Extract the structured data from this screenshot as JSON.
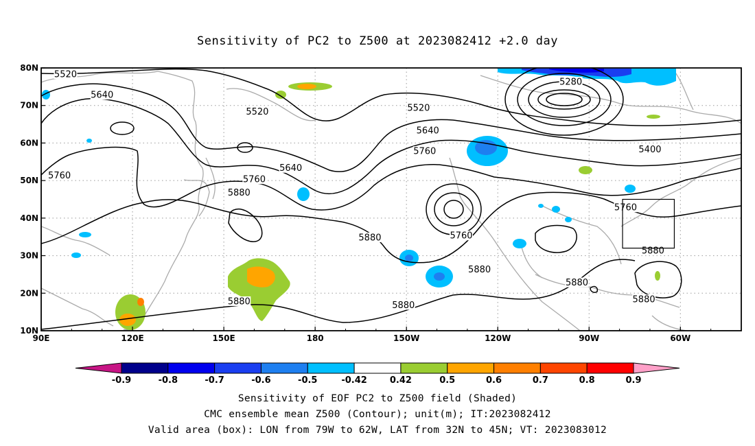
{
  "title": "Sensitivity of PC2 to Z500 at 2023082412 +2.0 day",
  "captions": [
    "Sensitivity of EOF PC2 to Z500 field (Shaded)",
    "CMC ensemble mean Z500 (Contour); unit(m); IT:2023082412",
    "Valid area (box): LON from 79W to 62W, LAT from 32N to 45N; VT: 2023083012"
  ],
  "map": {
    "lon_range": [
      90,
      320
    ],
    "lat_range": [
      10,
      80
    ],
    "x_ticks": [
      {
        "lon": 90,
        "label": "90E"
      },
      {
        "lon": 120,
        "label": "120E"
      },
      {
        "lon": 150,
        "label": "150E"
      },
      {
        "lon": 180,
        "label": "180"
      },
      {
        "lon": 210,
        "label": "150W"
      },
      {
        "lon": 240,
        "label": "120W"
      },
      {
        "lon": 270,
        "label": "90W"
      },
      {
        "lon": 300,
        "label": "60W"
      }
    ],
    "y_ticks": [
      {
        "lat": 10,
        "label": "10N"
      },
      {
        "lat": 20,
        "label": "20N"
      },
      {
        "lat": 30,
        "label": "30N"
      },
      {
        "lat": 40,
        "label": "40N"
      },
      {
        "lat": 50,
        "label": "50N"
      },
      {
        "lat": 60,
        "label": "60N"
      },
      {
        "lat": 70,
        "label": "70N"
      },
      {
        "lat": 80,
        "label": "80N"
      }
    ],
    "valid_box": {
      "lon_w": 281,
      "lon_e": 298,
      "lat_s": 32,
      "lat_n": 45
    },
    "contour_labels": [
      {
        "text": "5520",
        "lon": 98,
        "lat": 78
      },
      {
        "text": "5640",
        "lon": 110,
        "lat": 72.5
      },
      {
        "text": "5520",
        "lon": 161,
        "lat": 68
      },
      {
        "text": "5520",
        "lon": 214,
        "lat": 69
      },
      {
        "text": "5280",
        "lon": 264,
        "lat": 76
      },
      {
        "text": "5640",
        "lon": 217,
        "lat": 63
      },
      {
        "text": "5760",
        "lon": 216,
        "lat": 57.5
      },
      {
        "text": "5400",
        "lon": 290,
        "lat": 58
      },
      {
        "text": "5760",
        "lon": 96,
        "lat": 51
      },
      {
        "text": "5640",
        "lon": 172,
        "lat": 53
      },
      {
        "text": "5760",
        "lon": 160,
        "lat": 50
      },
      {
        "text": "5880",
        "lon": 155,
        "lat": 46.5
      },
      {
        "text": "5760",
        "lon": 282,
        "lat": 42.5
      },
      {
        "text": "5880",
        "lon": 198,
        "lat": 34.5
      },
      {
        "text": "5760",
        "lon": 228,
        "lat": 35
      },
      {
        "text": "5880",
        "lon": 291,
        "lat": 31
      },
      {
        "text": "5880",
        "lon": 234,
        "lat": 26
      },
      {
        "text": "5880",
        "lon": 266,
        "lat": 22.5
      },
      {
        "text": "5880",
        "lon": 155,
        "lat": 17.5
      },
      {
        "text": "5880",
        "lon": 209,
        "lat": 16.5
      },
      {
        "text": "5880",
        "lon": 288,
        "lat": 18
      }
    ]
  },
  "colorbar": {
    "levels": [
      "-0.9",
      "-0.8",
      "-0.7",
      "-0.6",
      "-0.5",
      "-0.42",
      "0.42",
      "0.5",
      "0.6",
      "0.7",
      "0.8",
      "0.9"
    ],
    "colors": [
      "#c71585",
      "#00008b",
      "#0000ee",
      "#1a3ef0",
      "#1e7ff0",
      "#00bfff",
      "#ffffff",
      "#9acd32",
      "#ffa500",
      "#ff7f00",
      "#ff4500",
      "#ff0000",
      "#ffa0c8"
    ]
  }
}
